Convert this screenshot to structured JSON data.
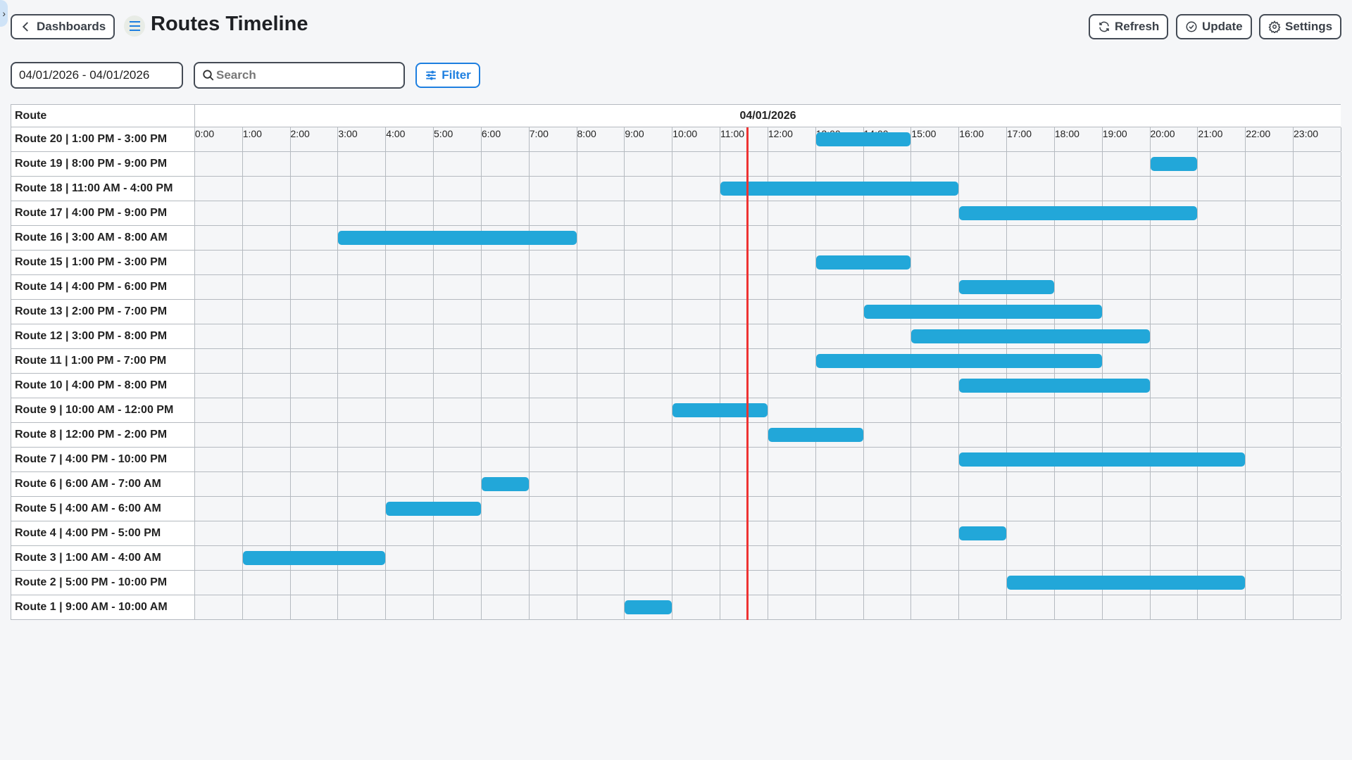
{
  "header": {
    "back_label": "Dashboards",
    "title": "Routes Timeline",
    "refresh_label": "Refresh",
    "update_label": "Update",
    "settings_label": "Settings"
  },
  "filters": {
    "date_range": "04/01/2026 - 04/01/2026",
    "search_placeholder": "Search",
    "filter_label": "Filter"
  },
  "timeline": {
    "route_header": "Route",
    "date": "04/01/2026",
    "current_time_hour": 11.57,
    "hours": [
      "0:00",
      "1:00",
      "2:00",
      "3:00",
      "4:00",
      "5:00",
      "6:00",
      "7:00",
      "8:00",
      "9:00",
      "10:00",
      "11:00",
      "12:00",
      "13:00",
      "14:00",
      "15:00",
      "16:00",
      "17:00",
      "18:00",
      "19:00",
      "20:00",
      "21:00",
      "22:00",
      "23:00"
    ],
    "bar_color": "#22a7d9",
    "now_color": "#ee3333",
    "routes": [
      {
        "label": "Route 20 | 1:00 PM - 3:00 PM",
        "start": 13,
        "end": 15
      },
      {
        "label": "Route 19 | 8:00 PM - 9:00 PM",
        "start": 20,
        "end": 21
      },
      {
        "label": "Route 18 | 11:00 AM - 4:00 PM",
        "start": 11,
        "end": 16
      },
      {
        "label": "Route 17 | 4:00 PM - 9:00 PM",
        "start": 16,
        "end": 21
      },
      {
        "label": "Route 16 | 3:00 AM - 8:00 AM",
        "start": 3,
        "end": 8
      },
      {
        "label": "Route 15 | 1:00 PM - 3:00 PM",
        "start": 13,
        "end": 15
      },
      {
        "label": "Route 14 | 4:00 PM - 6:00 PM",
        "start": 16,
        "end": 18
      },
      {
        "label": "Route 13 | 2:00 PM - 7:00 PM",
        "start": 14,
        "end": 19
      },
      {
        "label": "Route 12 | 3:00 PM - 8:00 PM",
        "start": 15,
        "end": 20
      },
      {
        "label": "Route 11 | 1:00 PM - 7:00 PM",
        "start": 13,
        "end": 19
      },
      {
        "label": "Route 10 | 4:00 PM - 8:00 PM",
        "start": 16,
        "end": 20
      },
      {
        "label": "Route 9 | 10:00 AM - 12:00 PM",
        "start": 10,
        "end": 12
      },
      {
        "label": "Route 8 | 12:00 PM - 2:00 PM",
        "start": 12,
        "end": 14
      },
      {
        "label": "Route 7 | 4:00 PM - 10:00 PM",
        "start": 16,
        "end": 22
      },
      {
        "label": "Route 6 | 6:00 AM - 7:00 AM",
        "start": 6,
        "end": 7
      },
      {
        "label": "Route 5 | 4:00 AM - 6:00 AM",
        "start": 4,
        "end": 6
      },
      {
        "label": "Route 4 | 4:00 PM - 5:00 PM",
        "start": 16,
        "end": 17
      },
      {
        "label": "Route 3 | 1:00 AM - 4:00 AM",
        "start": 1,
        "end": 4
      },
      {
        "label": "Route 2 | 5:00 PM - 10:00 PM",
        "start": 17,
        "end": 22
      },
      {
        "label": "Route 1 | 9:00 AM - 10:00 AM",
        "start": 9,
        "end": 10
      }
    ]
  }
}
